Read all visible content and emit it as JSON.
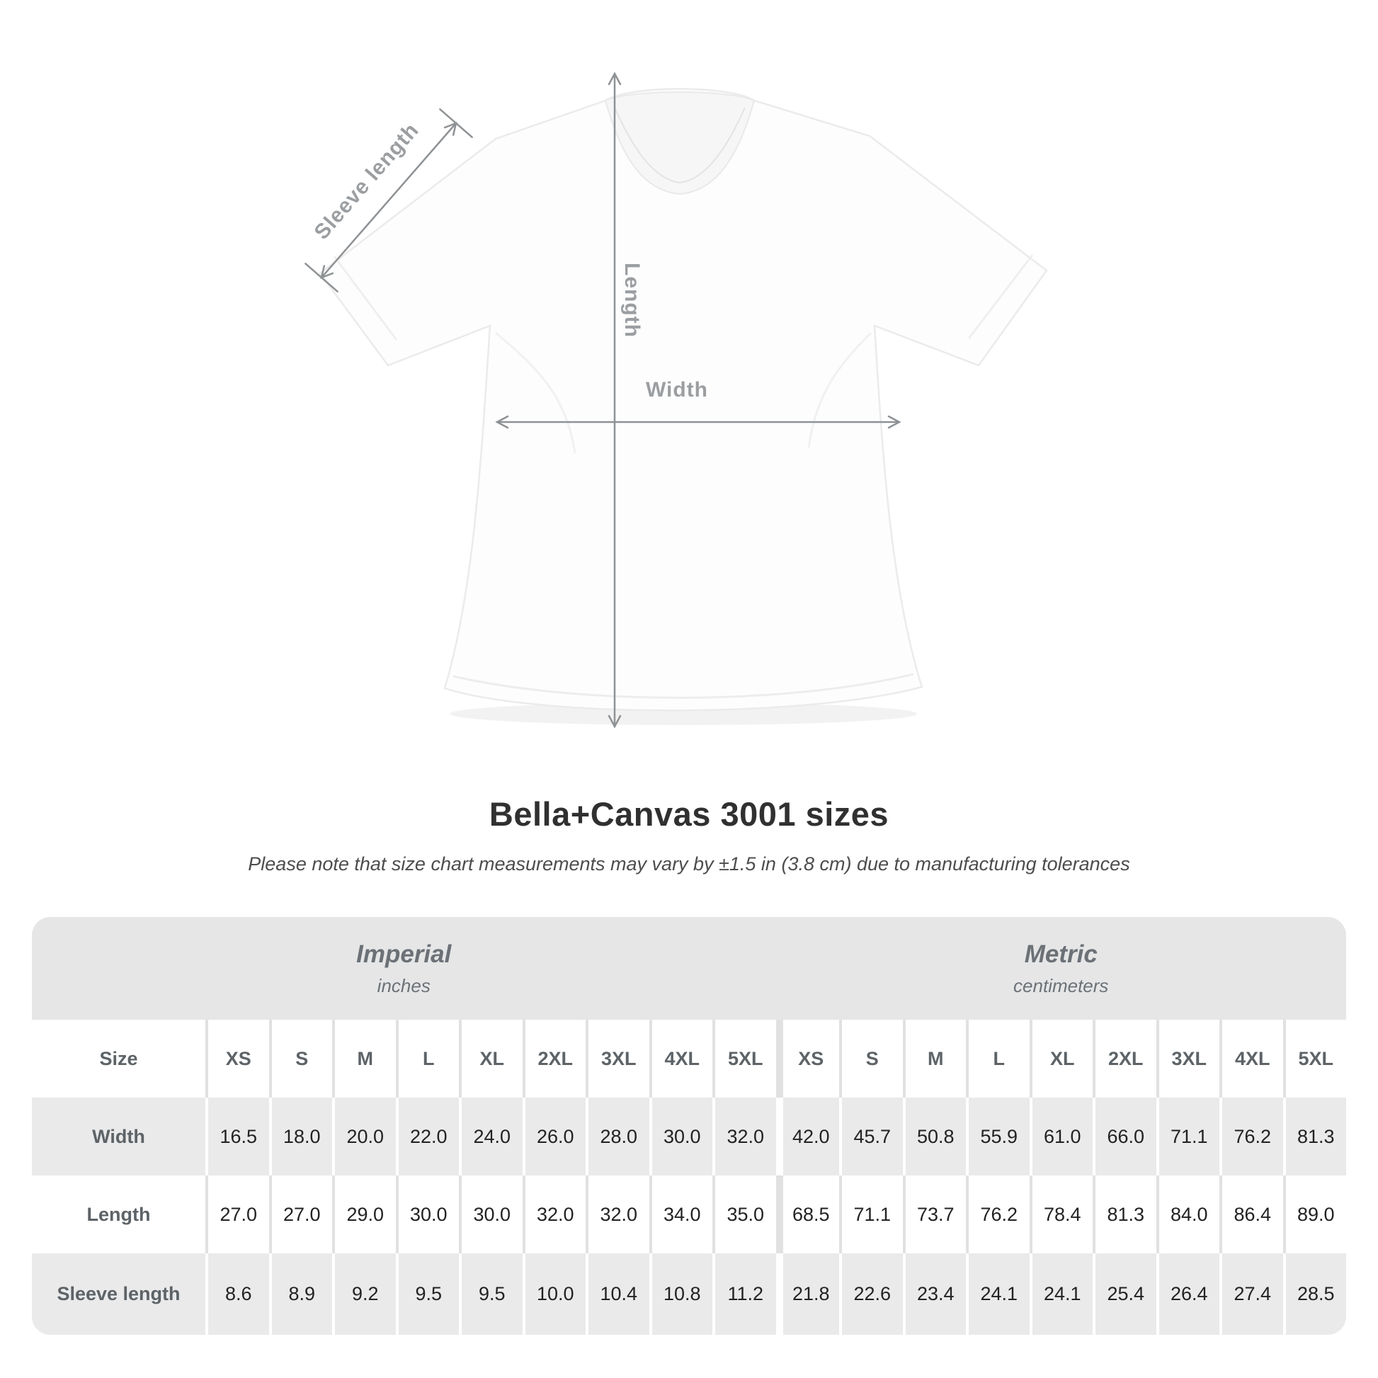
{
  "diagram": {
    "labels": {
      "sleeve": "Sleeve length",
      "length": "Length",
      "width": "Width"
    },
    "line_color": "#8e9295",
    "label_color": "#9b9ea1"
  },
  "title": "Bella+Canvas 3001 sizes",
  "subtitle": "Please note that size chart measurements may vary by ±1.5 in (3.8 cm) due to manufacturing tolerances",
  "table": {
    "size_header_label": "Size",
    "unit_groups": [
      {
        "name": "Imperial",
        "unit": "inches"
      },
      {
        "name": "Metric",
        "unit": "centimeters"
      }
    ],
    "sizes": [
      "XS",
      "S",
      "M",
      "L",
      "XL",
      "2XL",
      "3XL",
      "4XL",
      "5XL"
    ],
    "rows": [
      {
        "label": "Width",
        "imperial": [
          "16.5",
          "18.0",
          "20.0",
          "22.0",
          "24.0",
          "26.0",
          "28.0",
          "30.0",
          "32.0"
        ],
        "metric": [
          "42.0",
          "45.7",
          "50.8",
          "55.9",
          "61.0",
          "66.0",
          "71.1",
          "76.2",
          "81.3"
        ]
      },
      {
        "label": "Length",
        "imperial": [
          "27.0",
          "27.0",
          "29.0",
          "30.0",
          "30.0",
          "32.0",
          "32.0",
          "34.0",
          "35.0"
        ],
        "metric": [
          "68.5",
          "71.1",
          "73.7",
          "76.2",
          "78.4",
          "81.3",
          "84.0",
          "86.4",
          "89.0"
        ]
      },
      {
        "label": "Sleeve length",
        "imperial": [
          "8.6",
          "8.9",
          "9.2",
          "9.5",
          "9.5",
          "10.0",
          "10.4",
          "10.8",
          "11.2"
        ],
        "metric": [
          "21.8",
          "22.6",
          "23.4",
          "24.1",
          "24.1",
          "25.4",
          "26.4",
          "27.4",
          "28.5"
        ]
      }
    ],
    "colors": {
      "band_bg": "#e6e6e7",
      "gray_row_bg": "#eaeaeb",
      "white_row_divider": "#e1e1e1"
    }
  },
  "chart_data": {
    "type": "table",
    "title": "Bella+Canvas 3001 sizes",
    "note": "Measurements may vary by ±1.5 in (3.8 cm)",
    "columns": [
      "XS",
      "S",
      "M",
      "L",
      "XL",
      "2XL",
      "3XL",
      "4XL",
      "5XL"
    ],
    "rows": [
      {
        "measurement": "Width",
        "imperial_in": [
          16.5,
          18.0,
          20.0,
          22.0,
          24.0,
          26.0,
          28.0,
          30.0,
          32.0
        ],
        "metric_cm": [
          42.0,
          45.7,
          50.8,
          55.9,
          61.0,
          66.0,
          71.1,
          76.2,
          81.3
        ]
      },
      {
        "measurement": "Length",
        "imperial_in": [
          27.0,
          27.0,
          29.0,
          30.0,
          30.0,
          32.0,
          32.0,
          34.0,
          35.0
        ],
        "metric_cm": [
          68.5,
          71.1,
          73.7,
          76.2,
          78.4,
          81.3,
          84.0,
          86.4,
          89.0
        ]
      },
      {
        "measurement": "Sleeve length",
        "imperial_in": [
          8.6,
          8.9,
          9.2,
          9.5,
          9.5,
          10.0,
          10.4,
          10.8,
          11.2
        ],
        "metric_cm": [
          21.8,
          22.6,
          23.4,
          24.1,
          24.1,
          25.4,
          26.4,
          27.4,
          28.5
        ]
      }
    ]
  }
}
